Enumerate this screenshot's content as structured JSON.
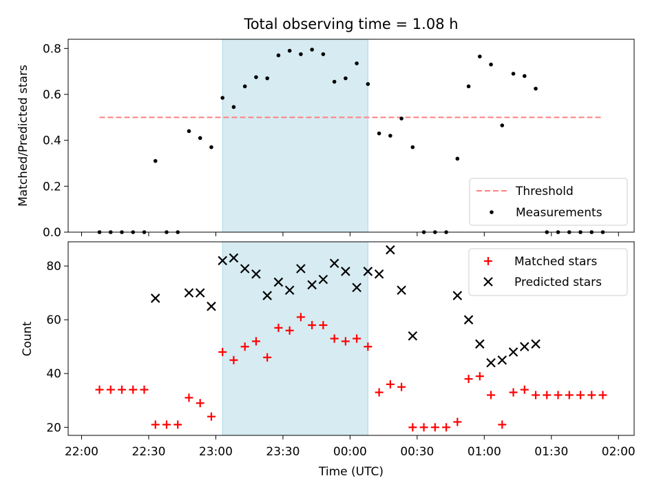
{
  "chart_data": [
    {
      "type": "scatter",
      "title": "Total observing time = 1.08 h",
      "xlabel": "",
      "ylabel": "Matched/Predicted stars",
      "ylim": [
        0,
        0.84
      ],
      "yticks": [
        0.0,
        0.2,
        0.4,
        0.6,
        0.8
      ],
      "ytick_labels": [
        "0.0",
        "0.2",
        "0.4",
        "0.6",
        "0.8"
      ],
      "shaded_interval": [
        "23:03",
        "00:08"
      ],
      "shade_color": "#add8e6",
      "legend_position": "lower right",
      "series": [
        {
          "name": "Threshold",
          "style": "dashed-line",
          "color": "#ff7f7f",
          "x": [
            "22:08",
            "01:53"
          ],
          "y": [
            0.5,
            0.5
          ]
        },
        {
          "name": "Measurements",
          "style": "dot",
          "color": "#000000",
          "x": [
            "22:08",
            "22:13",
            "22:18",
            "22:23",
            "22:28",
            "22:33",
            "22:38",
            "22:43",
            "22:48",
            "22:53",
            "22:58",
            "23:03",
            "23:08",
            "23:13",
            "23:18",
            "23:23",
            "23:28",
            "23:33",
            "23:38",
            "23:43",
            "23:48",
            "23:53",
            "23:58",
            "00:03",
            "00:08",
            "00:13",
            "00:18",
            "00:23",
            "00:28",
            "00:33",
            "00:38",
            "00:43",
            "00:48",
            "00:53",
            "00:58",
            "01:03",
            "01:08",
            "01:13",
            "01:18",
            "01:23",
            "01:28",
            "01:33",
            "01:38",
            "01:43",
            "01:48",
            "01:53"
          ],
          "y": [
            0,
            0,
            0,
            0,
            0,
            0.31,
            0,
            0,
            0.44,
            0.41,
            0.37,
            0.585,
            0.545,
            0.635,
            0.675,
            0.67,
            0.77,
            0.79,
            0.775,
            0.795,
            0.775,
            0.655,
            0.67,
            0.735,
            0.645,
            0.43,
            0.42,
            0.495,
            0.37,
            0,
            0,
            0,
            0.32,
            0.635,
            0.765,
            0.73,
            0.465,
            0.69,
            0.68,
            0.625,
            0,
            0,
            0,
            0,
            0,
            0
          ]
        }
      ]
    },
    {
      "type": "scatter",
      "title": "",
      "xlabel": "Time (UTC)",
      "ylabel": "Count",
      "ylim": [
        17,
        89
      ],
      "yticks": [
        20,
        40,
        60,
        80
      ],
      "ytick_labels": [
        "20",
        "40",
        "60",
        "80"
      ],
      "xticks": [
        "22:00",
        "22:30",
        "23:00",
        "23:30",
        "00:00",
        "00:30",
        "01:00",
        "01:30",
        "02:00"
      ],
      "shaded_interval": [
        "23:03",
        "00:08"
      ],
      "shade_color": "#add8e6",
      "legend_position": "upper right",
      "series": [
        {
          "name": "Matched stars",
          "style": "plus",
          "color": "#ff0000",
          "x": [
            "22:08",
            "22:13",
            "22:18",
            "22:23",
            "22:28",
            "22:33",
            "22:38",
            "22:43",
            "22:48",
            "22:53",
            "22:58",
            "23:03",
            "23:08",
            "23:13",
            "23:18",
            "23:23",
            "23:28",
            "23:33",
            "23:38",
            "23:43",
            "23:48",
            "23:53",
            "23:58",
            "00:03",
            "00:08",
            "00:13",
            "00:18",
            "00:23",
            "00:28",
            "00:33",
            "00:38",
            "00:43",
            "00:48",
            "00:53",
            "00:58",
            "01:03",
            "01:08",
            "01:13",
            "01:18",
            "01:23",
            "01:28",
            "01:33",
            "01:38",
            "01:43",
            "01:48",
            "01:53"
          ],
          "y": [
            34,
            34,
            34,
            34,
            34,
            21,
            21,
            21,
            31,
            29,
            24,
            48,
            45,
            50,
            52,
            46,
            57,
            56,
            61,
            58,
            58,
            53,
            52,
            53,
            50,
            33,
            36,
            35,
            20,
            20,
            20,
            20,
            22,
            38,
            39,
            32,
            21,
            33,
            34,
            32,
            32,
            32,
            32,
            32,
            32,
            32
          ]
        },
        {
          "name": "Predicted stars",
          "style": "x",
          "color": "#000000",
          "x": [
            "22:33",
            "22:48",
            "22:53",
            "22:58",
            "23:03",
            "23:08",
            "23:13",
            "23:18",
            "23:23",
            "23:28",
            "23:33",
            "23:38",
            "23:43",
            "23:48",
            "23:53",
            "23:58",
            "00:03",
            "00:08",
            "00:13",
            "00:18",
            "00:23",
            "00:28",
            "00:48",
            "00:53",
            "00:58",
            "01:03",
            "01:08",
            "01:13",
            "01:18",
            "01:23"
          ],
          "y": [
            68,
            70,
            70,
            65,
            82,
            83,
            79,
            77,
            69,
            74,
            71,
            79,
            73,
            75,
            81,
            78,
            72,
            78,
            77,
            86,
            71,
            54,
            69,
            60,
            51,
            44,
            45,
            48,
            50,
            51
          ]
        }
      ]
    }
  ],
  "shared_x": {
    "xlabel": "Time (UTC)",
    "xticks": [
      "22:00",
      "22:30",
      "23:00",
      "23:30",
      "00:00",
      "00:30",
      "01:00",
      "01:30",
      "02:00"
    ]
  }
}
